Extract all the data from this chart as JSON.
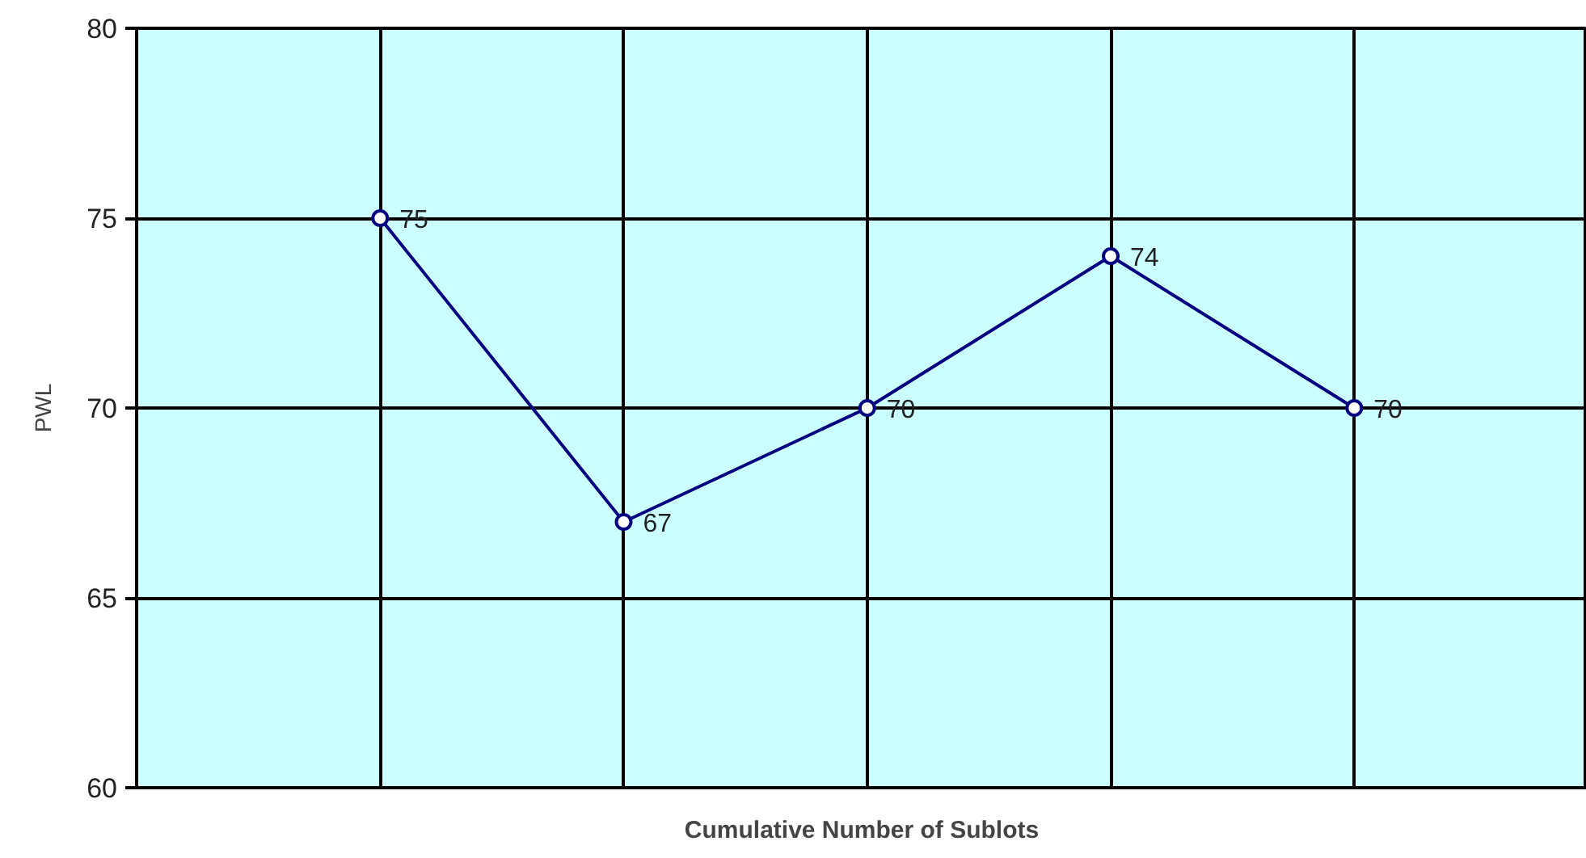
{
  "chart_data": {
    "type": "line",
    "xlabel": "Cumulative Number of Sublots",
    "ylabel": "PWL",
    "categories": [
      null,
      null,
      null,
      null,
      null
    ],
    "series": [
      {
        "color": "#000080",
        "values": [
          75,
          67,
          70,
          74,
          70
        ]
      }
    ],
    "ylim": [
      60,
      80
    ],
    "yticks": [
      60,
      65,
      70,
      75,
      80
    ],
    "grid": true,
    "marker": "circle",
    "line_style": "solid",
    "data_labels": true
  }
}
